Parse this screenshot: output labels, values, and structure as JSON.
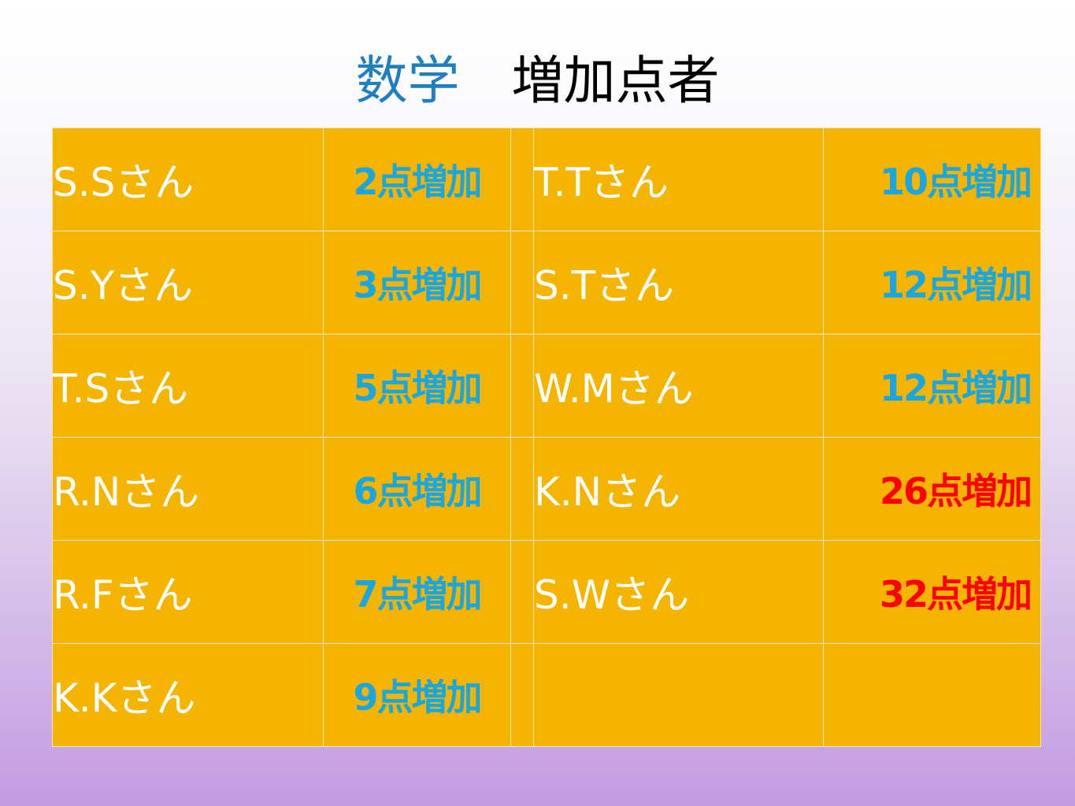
{
  "title": {
    "subject": "数学",
    "rest": "増加点者"
  },
  "colors": {
    "cell_bg": "#f4b400",
    "name_text": "#ffffff",
    "increase_small": "#1aa7df",
    "increase_large": "#ff0000",
    "subject_title": "#1f7fc0"
  },
  "left_rows": [
    {
      "name": "S.Sさん",
      "increase": "2点増加"
    },
    {
      "name": "S.Yさん",
      "increase": "3点増加"
    },
    {
      "name": "T.Sさん",
      "increase": "5点増加"
    },
    {
      "name": "R.Nさん",
      "increase": "6点増加"
    },
    {
      "name": "R.Fさん",
      "increase": "7点増加"
    },
    {
      "name": "K.Kさん",
      "increase": "9点増加"
    }
  ],
  "right_rows": [
    {
      "name": "T.Tさん",
      "increase": "10点増加",
      "highlight": false
    },
    {
      "name": "S.Tさん",
      "increase": "12点増加",
      "highlight": false
    },
    {
      "name": "W.Mさん",
      "increase": "12点増加",
      "highlight": false
    },
    {
      "name": "K.Nさん",
      "increase": "26点増加",
      "highlight": true
    },
    {
      "name": "S.Wさん",
      "increase": "32点増加",
      "highlight": true
    },
    {
      "name": "",
      "increase": "",
      "highlight": false
    }
  ]
}
